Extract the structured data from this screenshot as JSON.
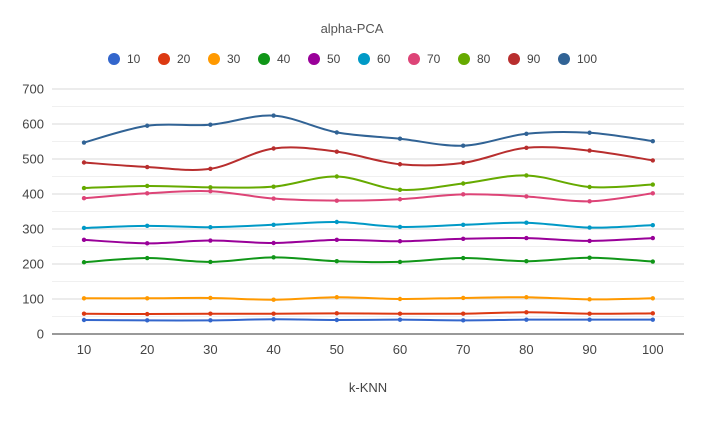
{
  "chart_data": {
    "type": "line",
    "title": "alpha-PCA",
    "xlabel": "k-KNN",
    "ylabel": "",
    "x": [
      10,
      20,
      30,
      40,
      50,
      60,
      70,
      80,
      90,
      100
    ],
    "ylim": [
      0,
      700
    ],
    "yticks": [
      0,
      100,
      200,
      300,
      400,
      500,
      600,
      700
    ],
    "grid": true,
    "legend_position": "top",
    "smooth": true,
    "series": [
      {
        "name": "10",
        "color": "#3366cc",
        "values": [
          40,
          39,
          39,
          42,
          40,
          41,
          39,
          41,
          41,
          41
        ]
      },
      {
        "name": "20",
        "color": "#dc3912",
        "values": [
          58,
          57,
          58,
          58,
          59,
          58,
          58,
          62,
          58,
          59
        ]
      },
      {
        "name": "30",
        "color": "#ff9900",
        "values": [
          102,
          102,
          103,
          98,
          105,
          100,
          103,
          105,
          99,
          102
        ]
      },
      {
        "name": "40",
        "color": "#109618",
        "values": [
          205,
          217,
          206,
          219,
          208,
          206,
          217,
          208,
          218,
          207
        ]
      },
      {
        "name": "50",
        "color": "#990099",
        "values": [
          269,
          259,
          267,
          260,
          269,
          265,
          272,
          274,
          266,
          274
        ]
      },
      {
        "name": "60",
        "color": "#0099c6",
        "values": [
          303,
          309,
          305,
          312,
          320,
          306,
          312,
          318,
          304,
          311
        ]
      },
      {
        "name": "70",
        "color": "#dd4477",
        "values": [
          388,
          402,
          408,
          387,
          381,
          385,
          399,
          393,
          379,
          402
        ]
      },
      {
        "name": "80",
        "color": "#66aa00",
        "values": [
          417,
          423,
          419,
          421,
          450,
          412,
          430,
          453,
          420,
          427
        ]
      },
      {
        "name": "90",
        "color": "#b82e2e",
        "values": [
          490,
          477,
          472,
          530,
          521,
          485,
          489,
          532,
          524,
          496
        ]
      },
      {
        "name": "100",
        "color": "#316395",
        "values": [
          547,
          595,
          598,
          624,
          576,
          558,
          538,
          572,
          575,
          551
        ]
      }
    ]
  }
}
